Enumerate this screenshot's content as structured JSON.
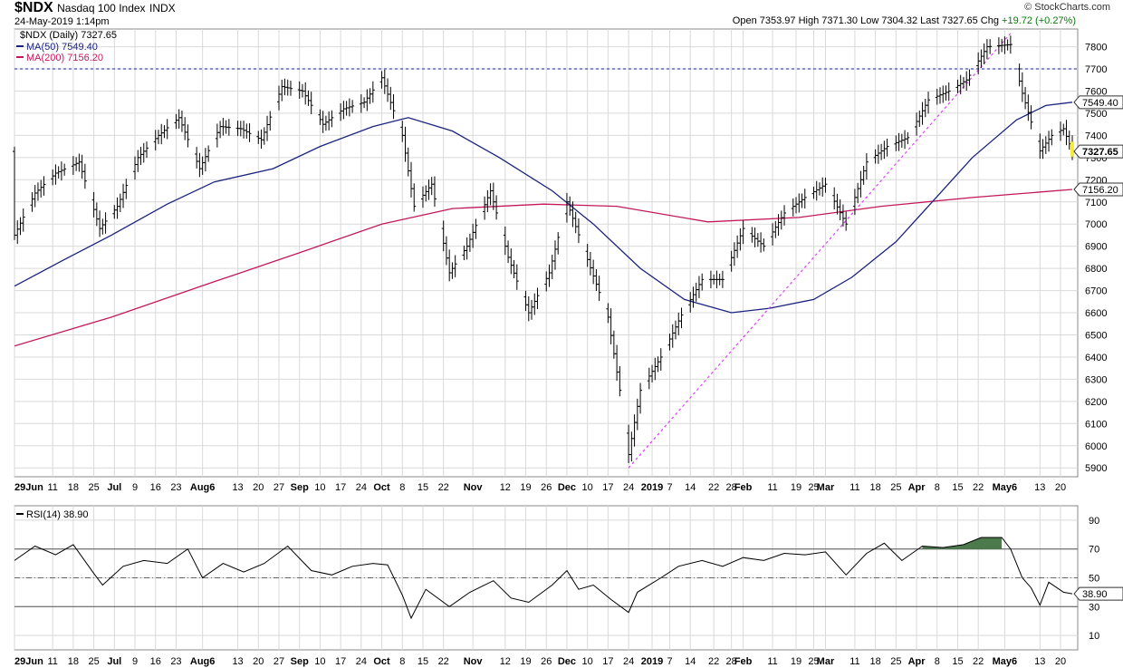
{
  "header": {
    "symbol": "$NDX",
    "name": "Nasdaq 100 Index",
    "exchange": "INDX",
    "datetime": "24-May-2019 1:14pm",
    "credit": "© StockCharts.com",
    "ohlc_label": "Open 7353.97  High 7371.30  Low 7304.32  Last 7327.65  Chg",
    "change": "+19.72 (+0.27%)"
  },
  "colors": {
    "price": "#000000",
    "ma50": "#1a237e",
    "ma200": "#c2185b",
    "trendline": "#e040fb",
    "resistance": "#1a237e",
    "rsi_overbought_fill": "#4d7a4d",
    "rsi_oversold_fill": "#8d4a4a",
    "grid": "#d9d9d9",
    "last_price_marker": "#f6ea3a"
  },
  "chart_data": [
    {
      "type": "line",
      "title": "$NDX (Daily) 7327.65",
      "legend": [
        {
          "name": "$NDX (Daily) 7327.65",
          "color": "#000000"
        },
        {
          "name": "MA(50) 7549.40",
          "color": "#1a237e"
        },
        {
          "name": "MA(200) 7156.20",
          "color": "#c2185b"
        }
      ],
      "legend_position": "top-left",
      "ylim": [
        5860,
        7880
      ],
      "yticks": [
        5900,
        6000,
        6100,
        6200,
        6300,
        6400,
        6500,
        6600,
        6700,
        6800,
        6900,
        7000,
        7100,
        7200,
        7300,
        7400,
        7500,
        7600,
        7700,
        7800
      ],
      "grid": true,
      "x_date_range": [
        "2018-05-29",
        "2019-05-24"
      ],
      "x_tick_labels": [
        {
          "date": "2018-05-29",
          "label": "29Jun"
        },
        {
          "date": "2018-06-11",
          "label": "11"
        },
        {
          "date": "2018-06-18",
          "label": "18"
        },
        {
          "date": "2018-06-25",
          "label": "25"
        },
        {
          "date": "2018-07-02",
          "label": "Jul"
        },
        {
          "date": "2018-07-09",
          "label": "9"
        },
        {
          "date": "2018-07-16",
          "label": "16"
        },
        {
          "date": "2018-07-23",
          "label": "23"
        },
        {
          "date": "2018-08-01",
          "label": "Aug6"
        },
        {
          "date": "2018-08-13",
          "label": "13"
        },
        {
          "date": "2018-08-20",
          "label": "20"
        },
        {
          "date": "2018-08-27",
          "label": "27"
        },
        {
          "date": "2018-09-03",
          "label": "Sep"
        },
        {
          "date": "2018-09-10",
          "label": "10"
        },
        {
          "date": "2018-09-17",
          "label": "17"
        },
        {
          "date": "2018-09-24",
          "label": "24"
        },
        {
          "date": "2018-10-01",
          "label": "Oct"
        },
        {
          "date": "2018-10-08",
          "label": "8"
        },
        {
          "date": "2018-10-15",
          "label": "15"
        },
        {
          "date": "2018-10-22",
          "label": "22"
        },
        {
          "date": "2018-11-01",
          "label": "Nov"
        },
        {
          "date": "2018-11-12",
          "label": "12"
        },
        {
          "date": "2018-11-19",
          "label": "19"
        },
        {
          "date": "2018-11-26",
          "label": "26"
        },
        {
          "date": "2018-12-03",
          "label": "Dec"
        },
        {
          "date": "2018-12-10",
          "label": "10"
        },
        {
          "date": "2018-12-17",
          "label": "17"
        },
        {
          "date": "2018-12-24",
          "label": "24"
        },
        {
          "date": "2019-01-01",
          "label": "2019"
        },
        {
          "date": "2019-01-07",
          "label": "7"
        },
        {
          "date": "2019-01-14",
          "label": "14"
        },
        {
          "date": "2019-01-22",
          "label": "22"
        },
        {
          "date": "2019-01-28",
          "label": "28"
        },
        {
          "date": "2019-02-01",
          "label": "Feb"
        },
        {
          "date": "2019-02-11",
          "label": "11"
        },
        {
          "date": "2019-02-19",
          "label": "19"
        },
        {
          "date": "2019-02-25",
          "label": "25"
        },
        {
          "date": "2019-03-01",
          "label": "Mar"
        },
        {
          "date": "2019-03-11",
          "label": "11"
        },
        {
          "date": "2019-03-18",
          "label": "18"
        },
        {
          "date": "2019-03-25",
          "label": "25"
        },
        {
          "date": "2019-04-01",
          "label": "Apr"
        },
        {
          "date": "2019-04-08",
          "label": "8"
        },
        {
          "date": "2019-04-15",
          "label": "15"
        },
        {
          "date": "2019-04-22",
          "label": "22"
        },
        {
          "date": "2019-05-01",
          "label": "May6"
        },
        {
          "date": "2019-05-13",
          "label": "13"
        },
        {
          "date": "2019-05-20",
          "label": "20"
        }
      ],
      "price_series": {
        "name": "$NDX (Daily)",
        "points": [
          [
            "2018-05-29",
            6950
          ],
          [
            "2018-06-05",
            7140
          ],
          [
            "2018-06-12",
            7230
          ],
          [
            "2018-06-20",
            7280
          ],
          [
            "2018-06-27",
            6980
          ],
          [
            "2018-07-03",
            7080
          ],
          [
            "2018-07-10",
            7300
          ],
          [
            "2018-07-17",
            7400
          ],
          [
            "2018-07-24",
            7480
          ],
          [
            "2018-07-31",
            7250
          ],
          [
            "2018-08-07",
            7440
          ],
          [
            "2018-08-14",
            7430
          ],
          [
            "2018-08-21",
            7380
          ],
          [
            "2018-08-28",
            7620
          ],
          [
            "2018-09-04",
            7600
          ],
          [
            "2018-09-11",
            7450
          ],
          [
            "2018-09-18",
            7520
          ],
          [
            "2018-09-25",
            7550
          ],
          [
            "2018-10-01",
            7660
          ],
          [
            "2018-10-08",
            7400
          ],
          [
            "2018-10-12",
            7080
          ],
          [
            "2018-10-18",
            7180
          ],
          [
            "2018-10-24",
            6780
          ],
          [
            "2018-10-30",
            6900
          ],
          [
            "2018-11-07",
            7150
          ],
          [
            "2018-11-13",
            6850
          ],
          [
            "2018-11-20",
            6600
          ],
          [
            "2018-11-27",
            6780
          ],
          [
            "2018-12-03",
            7100
          ],
          [
            "2018-12-10",
            6840
          ],
          [
            "2018-12-17",
            6580
          ],
          [
            "2018-12-21",
            6250
          ],
          [
            "2018-12-24",
            5960
          ],
          [
            "2018-12-28",
            6250
          ],
          [
            "2019-01-04",
            6400
          ],
          [
            "2019-01-11",
            6590
          ],
          [
            "2019-01-18",
            6750
          ],
          [
            "2019-01-25",
            6750
          ],
          [
            "2019-02-01",
            6980
          ],
          [
            "2019-02-08",
            6900
          ],
          [
            "2019-02-15",
            7050
          ],
          [
            "2019-02-22",
            7120
          ],
          [
            "2019-03-01",
            7180
          ],
          [
            "2019-03-08",
            7000
          ],
          [
            "2019-03-15",
            7280
          ],
          [
            "2019-03-22",
            7350
          ],
          [
            "2019-03-29",
            7390
          ],
          [
            "2019-04-05",
            7560
          ],
          [
            "2019-04-12",
            7600
          ],
          [
            "2019-04-18",
            7650
          ],
          [
            "2019-04-25",
            7800
          ],
          [
            "2019-05-03",
            7810
          ],
          [
            "2019-05-07",
            7590
          ],
          [
            "2019-05-13",
            7330
          ],
          [
            "2019-05-17",
            7400
          ],
          [
            "2019-05-21",
            7430
          ],
          [
            "2019-05-24",
            7327.65
          ]
        ]
      },
      "ma50": {
        "name": "MA(50)",
        "last": 7549.4,
        "points": [
          [
            "2018-05-29",
            6720
          ],
          [
            "2018-06-15",
            6840
          ],
          [
            "2018-07-01",
            6950
          ],
          [
            "2018-07-20",
            7090
          ],
          [
            "2018-08-05",
            7190
          ],
          [
            "2018-08-25",
            7250
          ],
          [
            "2018-09-10",
            7350
          ],
          [
            "2018-09-28",
            7440
          ],
          [
            "2018-10-10",
            7480
          ],
          [
            "2018-10-25",
            7420
          ],
          [
            "2018-11-10",
            7300
          ],
          [
            "2018-11-28",
            7150
          ],
          [
            "2018-12-12",
            7000
          ],
          [
            "2018-12-28",
            6800
          ],
          [
            "2019-01-12",
            6660
          ],
          [
            "2019-01-28",
            6600
          ],
          [
            "2019-02-10",
            6620
          ],
          [
            "2019-02-25",
            6660
          ],
          [
            "2019-03-10",
            6760
          ],
          [
            "2019-03-25",
            6920
          ],
          [
            "2019-04-05",
            7080
          ],
          [
            "2019-04-20",
            7300
          ],
          [
            "2019-05-05",
            7470
          ],
          [
            "2019-05-15",
            7535
          ],
          [
            "2019-05-24",
            7549.4
          ]
        ]
      },
      "ma200": {
        "name": "MA(200)",
        "last": 7156.2,
        "points": [
          [
            "2018-05-29",
            6450
          ],
          [
            "2018-07-01",
            6580
          ],
          [
            "2018-08-05",
            6740
          ],
          [
            "2018-09-05",
            6880
          ],
          [
            "2018-10-01",
            7000
          ],
          [
            "2018-10-25",
            7070
          ],
          [
            "2018-11-25",
            7090
          ],
          [
            "2018-12-20",
            7080
          ],
          [
            "2019-01-20",
            7010
          ],
          [
            "2019-02-20",
            7030
          ],
          [
            "2019-03-20",
            7080
          ],
          [
            "2019-04-20",
            7120
          ],
          [
            "2019-05-24",
            7156.2
          ]
        ]
      },
      "resistance_level": 7700,
      "trendline": {
        "from": [
          "2018-12-24",
          5900
        ],
        "to": [
          "2019-05-03",
          7860
        ]
      },
      "axis_markers": [
        {
          "value": 7549.4,
          "label": "7549.40"
        },
        {
          "value": 7327.65,
          "label": "7327.65"
        },
        {
          "value": 7156.2,
          "label": "7156.20"
        }
      ]
    },
    {
      "type": "line",
      "title": "RSI(14) 38.90",
      "legend": [
        {
          "name": "RSI(14) 38.90",
          "color": "#000000"
        }
      ],
      "ylim": [
        0,
        100
      ],
      "yticks": [
        10,
        30,
        50,
        70,
        90
      ],
      "overbought": 70,
      "oversold": 30,
      "midline": 50,
      "last": 38.9,
      "last_label": "38.90",
      "points": [
        [
          "2018-05-29",
          62
        ],
        [
          "2018-06-05",
          72
        ],
        [
          "2018-06-12",
          66
        ],
        [
          "2018-06-18",
          73
        ],
        [
          "2018-06-25",
          53
        ],
        [
          "2018-06-28",
          45
        ],
        [
          "2018-07-05",
          58
        ],
        [
          "2018-07-12",
          62
        ],
        [
          "2018-07-20",
          60
        ],
        [
          "2018-07-27",
          70
        ],
        [
          "2018-08-01",
          50
        ],
        [
          "2018-08-08",
          60
        ],
        [
          "2018-08-15",
          54
        ],
        [
          "2018-08-22",
          60
        ],
        [
          "2018-08-30",
          72
        ],
        [
          "2018-09-07",
          55
        ],
        [
          "2018-09-14",
          52
        ],
        [
          "2018-09-21",
          58
        ],
        [
          "2018-09-28",
          60
        ],
        [
          "2018-10-03",
          59
        ],
        [
          "2018-10-08",
          38
        ],
        [
          "2018-10-11",
          22
        ],
        [
          "2018-10-16",
          42
        ],
        [
          "2018-10-24",
          30
        ],
        [
          "2018-10-31",
          40
        ],
        [
          "2018-11-08",
          48
        ],
        [
          "2018-11-14",
          36
        ],
        [
          "2018-11-20",
          33
        ],
        [
          "2018-11-28",
          45
        ],
        [
          "2018-12-03",
          55
        ],
        [
          "2018-12-07",
          42
        ],
        [
          "2018-12-12",
          45
        ],
        [
          "2018-12-18",
          35
        ],
        [
          "2018-12-24",
          26
        ],
        [
          "2018-12-27",
          40
        ],
        [
          "2019-01-04",
          50
        ],
        [
          "2019-01-10",
          58
        ],
        [
          "2019-01-18",
          62
        ],
        [
          "2019-01-25",
          58
        ],
        [
          "2019-02-01",
          64
        ],
        [
          "2019-02-08",
          62
        ],
        [
          "2019-02-15",
          67
        ],
        [
          "2019-02-22",
          66
        ],
        [
          "2019-03-01",
          68
        ],
        [
          "2019-03-08",
          52
        ],
        [
          "2019-03-15",
          67
        ],
        [
          "2019-03-21",
          74
        ],
        [
          "2019-03-27",
          62
        ],
        [
          "2019-04-03",
          72
        ],
        [
          "2019-04-10",
          71
        ],
        [
          "2019-04-17",
          73
        ],
        [
          "2019-04-23",
          78
        ],
        [
          "2019-04-30",
          78
        ],
        [
          "2019-05-03",
          70
        ],
        [
          "2019-05-07",
          50
        ],
        [
          "2019-05-10",
          43
        ],
        [
          "2019-05-13",
          31
        ],
        [
          "2019-05-16",
          47
        ],
        [
          "2019-05-21",
          40
        ],
        [
          "2019-05-24",
          38.9
        ]
      ]
    }
  ]
}
